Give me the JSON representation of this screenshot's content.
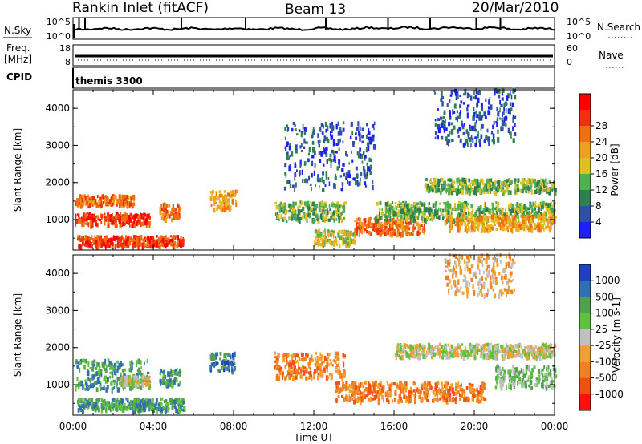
{
  "header": {
    "station": "Rankin Inlet (fitACF)",
    "beam": "Beam 13",
    "date": "20/Mar/2010"
  },
  "noise_panel": {
    "left_label": "N.Sky",
    "right_label": "N.Search",
    "left_ticks": [
      "10^5",
      "10^0"
    ],
    "right_ticks": [
      "10^5",
      "10^0"
    ]
  },
  "freq_panel": {
    "left_label_1": "Freq.",
    "left_label_2": "[MHz]",
    "right_label": "Nave",
    "left_ticks": [
      "18",
      "8"
    ],
    "right_ticks": [
      "60",
      "0"
    ]
  },
  "cpid_panel": {
    "label": "CPID",
    "text": "themis 3300"
  },
  "colors": {
    "power": [
      "#1e1eff",
      "#3050a8",
      "#2f8050",
      "#50b050",
      "#e0c020",
      "#f0a020",
      "#f07010",
      "#f03010",
      "#ff0000"
    ],
    "velocity": [
      "#2040c0",
      "#3070b0",
      "#50a050",
      "#60c040",
      "#c0c0c0",
      "#f0a030",
      "#f08020",
      "#f05010",
      "#ff1010"
    ]
  },
  "chart_data": [
    {
      "type": "heatmap",
      "name": "power",
      "xlabel": "",
      "ylabel": "Slant Range [km]",
      "x_ticks": [
        "00:00",
        "04:00",
        "08:00",
        "12:00",
        "16:00",
        "20:00",
        "00:00"
      ],
      "x_range_hours": [
        0,
        24
      ],
      "y_ticks": [
        "1000",
        "2000",
        "3000",
        "4000"
      ],
      "y_range_km": [
        180,
        4500
      ],
      "colorbar_label": "Power [dB]",
      "colorbar_ticks": [
        "4",
        "8",
        "12",
        "16",
        "20",
        "24",
        "28"
      ],
      "bands": [
        {
          "t0": 0.1,
          "t1": 3.8,
          "r": 1000,
          "w": 160,
          "level": 7
        },
        {
          "t0": 0.1,
          "t1": 3.0,
          "r": 1500,
          "w": 140,
          "level": 6
        },
        {
          "t0": 0.2,
          "t1": 5.5,
          "r": 400,
          "w": 140,
          "level": 7
        },
        {
          "t0": 4.3,
          "t1": 5.3,
          "r": 1200,
          "w": 220,
          "level": 6
        },
        {
          "t0": 6.8,
          "t1": 8.1,
          "r": 1500,
          "w": 260,
          "level": 5
        },
        {
          "t0": 10.0,
          "t1": 13.5,
          "r": 1200,
          "w": 260,
          "level": 3
        },
        {
          "t0": 12.0,
          "t1": 14.0,
          "r": 500,
          "w": 200,
          "level": 4
        },
        {
          "t0": 14.0,
          "t1": 17.5,
          "r": 800,
          "w": 220,
          "level": 6
        },
        {
          "t0": 15.0,
          "t1": 24.0,
          "r": 1200,
          "w": 250,
          "level": 3
        },
        {
          "t0": 17.5,
          "t1": 24.0,
          "r": 1900,
          "w": 180,
          "level": 3
        },
        {
          "t0": 18.5,
          "t1": 24.0,
          "r": 900,
          "w": 200,
          "level": 5
        },
        {
          "t0": 10.5,
          "t1": 15.0,
          "r": 2700,
          "w": 900,
          "level": 1
        },
        {
          "t0": 18.0,
          "t1": 22.0,
          "r": 3800,
          "w": 800,
          "level": 1
        }
      ]
    },
    {
      "type": "heatmap",
      "name": "velocity",
      "xlabel": "Time UT",
      "ylabel": "Slant Range [km]",
      "x_ticks": [
        "00:00",
        "04:00",
        "08:00",
        "12:00",
        "16:00",
        "20:00",
        "00:00"
      ],
      "x_range_hours": [
        0,
        24
      ],
      "y_ticks": [
        "1000",
        "2000",
        "3000",
        "4000"
      ],
      "y_range_km": [
        180,
        4500
      ],
      "colorbar_label": "Velocity [m s-1]",
      "colorbar_ticks": [
        "1000",
        "500",
        "100",
        "25",
        "-25",
        "-100",
        "-500",
        "-1000"
      ],
      "bands": [
        {
          "t0": 0.1,
          "t1": 3.8,
          "r": 1250,
          "w": 400,
          "level": 2
        },
        {
          "t0": 0.2,
          "t1": 5.5,
          "r": 450,
          "w": 160,
          "level": 2
        },
        {
          "t0": 2.3,
          "t1": 3.8,
          "r": 1100,
          "w": 120,
          "level": 4
        },
        {
          "t0": 4.3,
          "t1": 5.3,
          "r": 1200,
          "w": 220,
          "level": 2
        },
        {
          "t0": 6.8,
          "t1": 8.0,
          "r": 1600,
          "w": 250,
          "level": 1
        },
        {
          "t0": 10.0,
          "t1": 13.5,
          "r": 1500,
          "w": 350,
          "level": 6
        },
        {
          "t0": 13.0,
          "t1": 20.5,
          "r": 800,
          "w": 260,
          "level": 6
        },
        {
          "t0": 16.0,
          "t1": 24.0,
          "r": 1900,
          "w": 180,
          "level": 4
        },
        {
          "t0": 21.0,
          "t1": 24.0,
          "r": 1200,
          "w": 300,
          "level": 3
        },
        {
          "t0": 18.5,
          "t1": 22.0,
          "r": 4000,
          "w": 600,
          "level": 5
        }
      ]
    }
  ]
}
